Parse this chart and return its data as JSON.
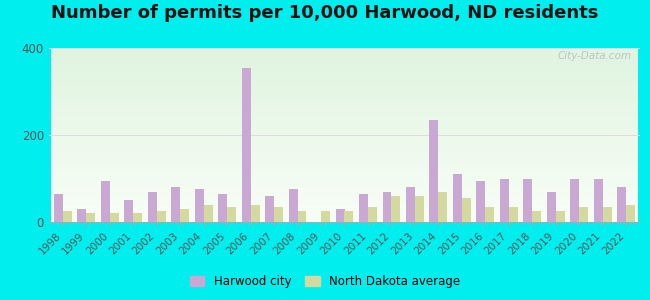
{
  "title": "Number of permits per 10,000 Harwood, ND residents",
  "years": [
    1998,
    1999,
    2000,
    2001,
    2002,
    2003,
    2004,
    2005,
    2006,
    2007,
    2008,
    2009,
    2010,
    2011,
    2012,
    2013,
    2014,
    2015,
    2016,
    2017,
    2018,
    2019,
    2020,
    2021,
    2022
  ],
  "harwood": [
    65,
    30,
    95,
    50,
    70,
    80,
    75,
    65,
    355,
    60,
    75,
    0,
    30,
    65,
    70,
    80,
    235,
    110,
    95,
    100,
    100,
    70,
    100,
    100,
    80
  ],
  "nd_avg": [
    25,
    20,
    20,
    20,
    25,
    30,
    40,
    35,
    40,
    35,
    25,
    25,
    25,
    35,
    60,
    60,
    70,
    55,
    35,
    35,
    25,
    25,
    35,
    35,
    40
  ],
  "harwood_color": "#c9a8d4",
  "nd_avg_color": "#d4d9a0",
  "outer_bg": "#00eeee",
  "plot_bg_color1": "#edf7ed",
  "plot_bg_color2": "#f8fdf5",
  "ylim": [
    0,
    400
  ],
  "yticks": [
    0,
    200,
    400
  ],
  "bar_width": 0.38,
  "title_fontsize": 13,
  "watermark": "City-Data.com",
  "legend_harwood": "Harwood city",
  "legend_nd": "North Dakota average",
  "grid_color": "#dddddd",
  "tick_label_color": "#555555",
  "spine_color": "#aaaaaa"
}
